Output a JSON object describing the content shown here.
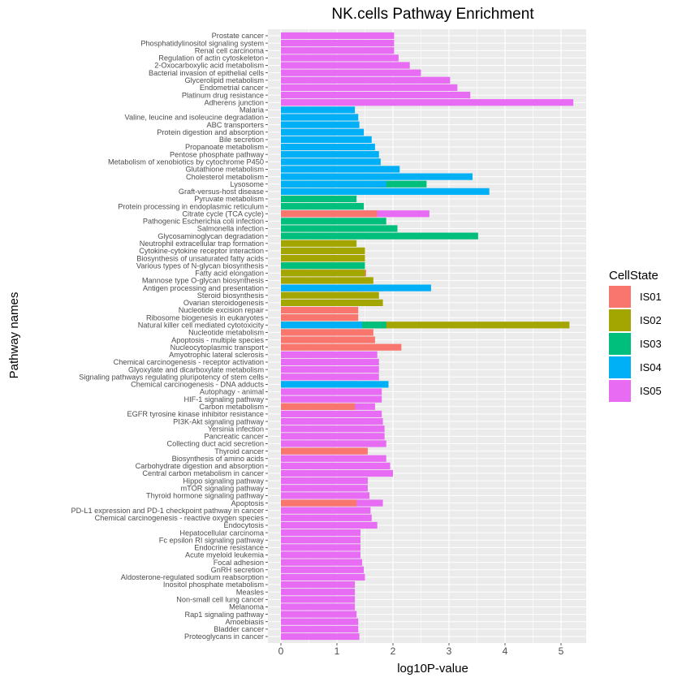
{
  "chart_data": {
    "type": "bar",
    "orientation": "horizontal",
    "title": "NK.cells Pathway Enrichment",
    "xlabel": "log10P-value",
    "ylabel": "Pathway names",
    "xlim": [
      0,
      5.4
    ],
    "xticks": [
      "0",
      "1",
      "2",
      "3",
      "4",
      "5"
    ],
    "grid": true,
    "legend": {
      "title": "CellState",
      "position": "right",
      "entries": [
        {
          "name": "IS01",
          "color": "#F8766D"
        },
        {
          "name": "IS02",
          "color": "#A3A500"
        },
        {
          "name": "IS03",
          "color": "#00BF7D"
        },
        {
          "name": "IS04",
          "color": "#00B0F6"
        },
        {
          "name": "IS05",
          "color": "#E76BF3"
        }
      ]
    },
    "categories": [
      "Prostate cancer",
      "Phosphatidylinositol signaling system",
      "Renal cell carcinoma",
      "Regulation of actin cytoskeleton",
      "2-Oxocarboxylic acid metabolism",
      "Bacterial invasion of epithelial cells",
      "Glycerolipid metabolism",
      "Endometrial cancer",
      "Platinum drug resistance",
      "Adherens junction",
      "Malaria",
      "Valine, leucine and isoleucine degradation",
      "ABC transporters",
      "Protein digestion and absorption",
      "Bile secretion",
      "Propanoate metabolism",
      "Pentose phosphate pathway",
      "Metabolism of xenobiotics by cytochrome P450",
      "Glutathione metabolism",
      "Cholesterol metabolism",
      "Lysosome",
      "Graft-versus-host disease",
      "Pyruvate metabolism",
      "Protein processing in endoplasmic reticulum",
      "Citrate cycle (TCA cycle)",
      "Pathogenic Escherichia coli infection",
      "Salmonella infection",
      "Glycosaminoglycan degradation",
      "Neutrophil extracellular trap formation",
      "Cytokine-cytokine receptor interaction",
      "Biosynthesis of unsaturated fatty acids",
      "Various types of N-glycan biosynthesis",
      "Fatty acid elongation",
      "Mannose type O-glycan biosynthesis",
      "Antigen processing and presentation",
      "Steroid biosynthesis",
      "Ovarian steroidogenesis",
      "Nucleotide excision repair",
      "Ribosome biogenesis in eukaryotes",
      "Natural killer cell mediated cytotoxicity",
      "Nucleotide metabolism",
      "Apoptosis - multiple species",
      "Nucleocytoplasmic transport",
      "Amyotrophic lateral sclerosis",
      "Chemical carcinogenesis - receptor activation",
      "Glyoxylate and dicarboxylate metabolism",
      "Signaling pathways regulating pluripotency of stem cells",
      "Chemical carcinogenesis - DNA adducts",
      "Autophagy - animal",
      "HIF-1 signaling pathway",
      "Carbon metabolism",
      "EGFR tyrosine kinase inhibitor resistance",
      "PI3K-Akt signaling pathway",
      "Yersinia infection",
      "Pancreatic cancer",
      "Collecting duct acid secretion",
      "Thyroid cancer",
      "Biosynthesis of amino acids",
      "Carbohydrate digestion and absorption",
      "Central carbon metabolism in cancer",
      "Hippo signaling pathway",
      "mTOR signaling pathway",
      "Thyroid hormone signaling pathway",
      "Apoptosis",
      "PD-L1 expression and PD-1 checkpoint pathway in cancer",
      "Chemical carcinogenesis - reactive oxygen species",
      "Endocytosis",
      "Hepatocellular carcinoma",
      "Fc epsilon RI signaling pathway",
      "Endocrine resistance",
      "Acute myeloid leukemia",
      "Focal adhesion",
      "GnRH secretion",
      "Aldosterone-regulated sodium reabsorption",
      "Inositol phosphate metabolism",
      "Measles",
      "Non-small cell lung cancer",
      "Melanoma",
      "Rap1 signaling pathway",
      "Amoebiasis",
      "Bladder cancer",
      "Proteoglycans in cancer"
    ],
    "series": [
      {
        "name": "IS01",
        "values": [
          null,
          null,
          null,
          null,
          null,
          null,
          null,
          null,
          null,
          null,
          null,
          null,
          null,
          null,
          null,
          null,
          null,
          null,
          null,
          null,
          null,
          null,
          null,
          null,
          1.72,
          null,
          null,
          null,
          null,
          null,
          null,
          1.45,
          1.52,
          null,
          null,
          null,
          null,
          1.38,
          1.38,
          null,
          1.65,
          1.68,
          2.15,
          null,
          null,
          null,
          null,
          null,
          null,
          null,
          1.32,
          null,
          null,
          null,
          null,
          null,
          1.55,
          null,
          null,
          null,
          null,
          null,
          null,
          1.35,
          null,
          null,
          null,
          null,
          null,
          null,
          null,
          null,
          null,
          null,
          null,
          null,
          null,
          null,
          null,
          null,
          null,
          null
        ]
      },
      {
        "name": "IS02",
        "values": [
          null,
          null,
          null,
          null,
          null,
          null,
          null,
          null,
          null,
          null,
          null,
          null,
          null,
          null,
          null,
          null,
          null,
          null,
          null,
          null,
          null,
          null,
          null,
          null,
          null,
          null,
          null,
          null,
          1.35,
          1.5,
          1.5,
          1.5,
          1.5,
          1.65,
          1.35,
          1.75,
          1.82,
          null,
          null,
          5.15,
          null,
          null,
          null,
          null,
          null,
          null,
          null,
          null,
          null,
          null,
          null,
          null,
          null,
          null,
          null,
          null,
          null,
          null,
          null,
          null,
          null,
          null,
          null,
          null,
          null,
          null,
          null,
          null,
          null,
          null,
          null,
          null,
          null,
          null,
          null,
          null,
          null,
          null,
          null,
          null,
          null,
          null
        ]
      },
      {
        "name": "IS03",
        "values": [
          null,
          null,
          null,
          null,
          null,
          null,
          null,
          null,
          null,
          null,
          null,
          null,
          null,
          null,
          null,
          null,
          null,
          null,
          null,
          null,
          2.6,
          null,
          1.35,
          1.48,
          null,
          1.88,
          2.08,
          3.52,
          null,
          null,
          null,
          1.5,
          null,
          null,
          null,
          null,
          null,
          null,
          null,
          1.88,
          null,
          null,
          null,
          null,
          null,
          null,
          null,
          null,
          null,
          null,
          null,
          null,
          null,
          null,
          null,
          null,
          null,
          null,
          null,
          null,
          null,
          null,
          null,
          null,
          null,
          null,
          null,
          null,
          null,
          null,
          null,
          null,
          null,
          null,
          null,
          null,
          null,
          null,
          null,
          null,
          null,
          null
        ]
      },
      {
        "name": "IS04",
        "values": [
          null,
          null,
          null,
          null,
          null,
          null,
          null,
          null,
          null,
          null,
          1.32,
          1.38,
          1.4,
          1.48,
          1.62,
          1.68,
          1.75,
          1.78,
          2.12,
          3.42,
          1.88,
          3.72,
          null,
          null,
          null,
          null,
          null,
          null,
          null,
          null,
          null,
          null,
          null,
          null,
          2.68,
          null,
          null,
          null,
          null,
          1.45,
          null,
          null,
          null,
          null,
          null,
          null,
          null,
          1.92,
          null,
          null,
          null,
          null,
          null,
          null,
          null,
          null,
          null,
          null,
          null,
          null,
          null,
          null,
          null,
          null,
          null,
          null,
          null,
          null,
          null,
          null,
          null,
          null,
          null,
          null,
          null,
          null,
          null,
          null,
          null,
          null,
          null,
          null
        ]
      },
      {
        "name": "IS05",
        "values": [
          2.02,
          2.02,
          2.02,
          2.1,
          2.3,
          2.5,
          3.02,
          3.15,
          3.38,
          5.22,
          null,
          null,
          null,
          null,
          null,
          null,
          null,
          null,
          null,
          null,
          null,
          null,
          null,
          null,
          2.65,
          null,
          null,
          null,
          null,
          null,
          null,
          null,
          null,
          null,
          1.82,
          null,
          null,
          null,
          null,
          null,
          null,
          null,
          null,
          1.72,
          1.75,
          1.75,
          1.75,
          1.38,
          1.8,
          1.8,
          1.68,
          1.8,
          1.82,
          1.85,
          1.85,
          1.88,
          1.5,
          1.88,
          1.95,
          2.0,
          1.55,
          1.55,
          1.58,
          1.82,
          1.6,
          1.62,
          1.72,
          1.42,
          1.42,
          1.42,
          1.42,
          1.45,
          1.48,
          1.5,
          1.32,
          1.32,
          1.32,
          1.32,
          1.35,
          1.38,
          1.38,
          1.4
        ]
      }
    ]
  }
}
